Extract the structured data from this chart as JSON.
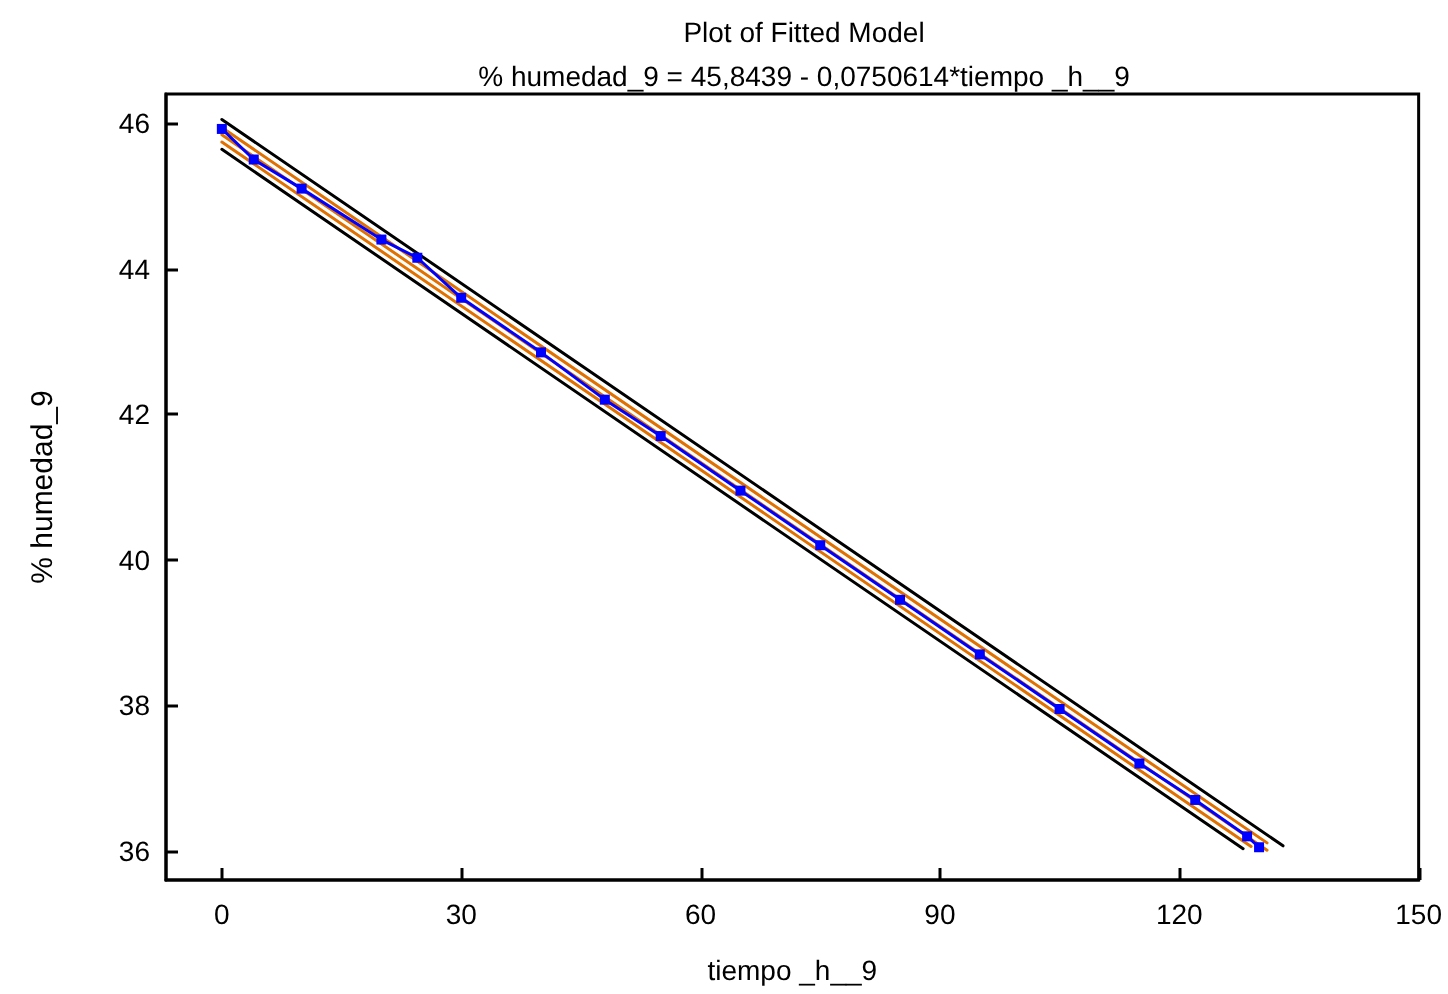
{
  "chart_data": {
    "type": "line",
    "title": "Plot of Fitted Model",
    "subtitle": "% humedad_9 = 45,8439 - 0,0750614*tiempo _h__9",
    "xlabel": "tiempo _h__9",
    "ylabel": "% humedad_9",
    "xlim": [
      -7,
      150
    ],
    "xticks": [
      0,
      30,
      60,
      90,
      120,
      150
    ],
    "ylim": [
      35.6,
      46.4
    ],
    "yticks": [
      36,
      38,
      40,
      42,
      44,
      46
    ],
    "grid": false,
    "marker": "none",
    "line_style": "solid",
    "series": [
      {
        "color": "#000000",
        "x": [
          0,
          133
        ],
        "values": [
          46.05,
          36.07
        ]
      },
      {
        "color": "#000000",
        "x": [
          0,
          128
        ],
        "values": [
          45.64,
          36.03
        ]
      },
      {
        "color": "#e07000",
        "x": [
          0,
          131
        ],
        "values": [
          45.94,
          36.11
        ]
      },
      {
        "color": "#e07000",
        "x": [
          0,
          129
        ],
        "values": [
          45.74,
          36.06
        ]
      },
      {
        "color": "#e07000",
        "x": [
          0,
          131
        ],
        "values": [
          45.84,
          36.01
        ]
      },
      {
        "color": "#0000ff",
        "marker": "square",
        "x": [
          0,
          4,
          10,
          20,
          24.5,
          30,
          40,
          48,
          55,
          65,
          75,
          85,
          95,
          105,
          115,
          122,
          128.5,
          130
        ],
        "values": [
          45.92,
          45.5,
          45.1,
          44.4,
          44.15,
          43.6,
          42.85,
          42.2,
          41.7,
          40.95,
          40.2,
          39.45,
          38.7,
          37.95,
          37.2,
          36.7,
          36.2,
          36.05
        ]
      }
    ]
  }
}
